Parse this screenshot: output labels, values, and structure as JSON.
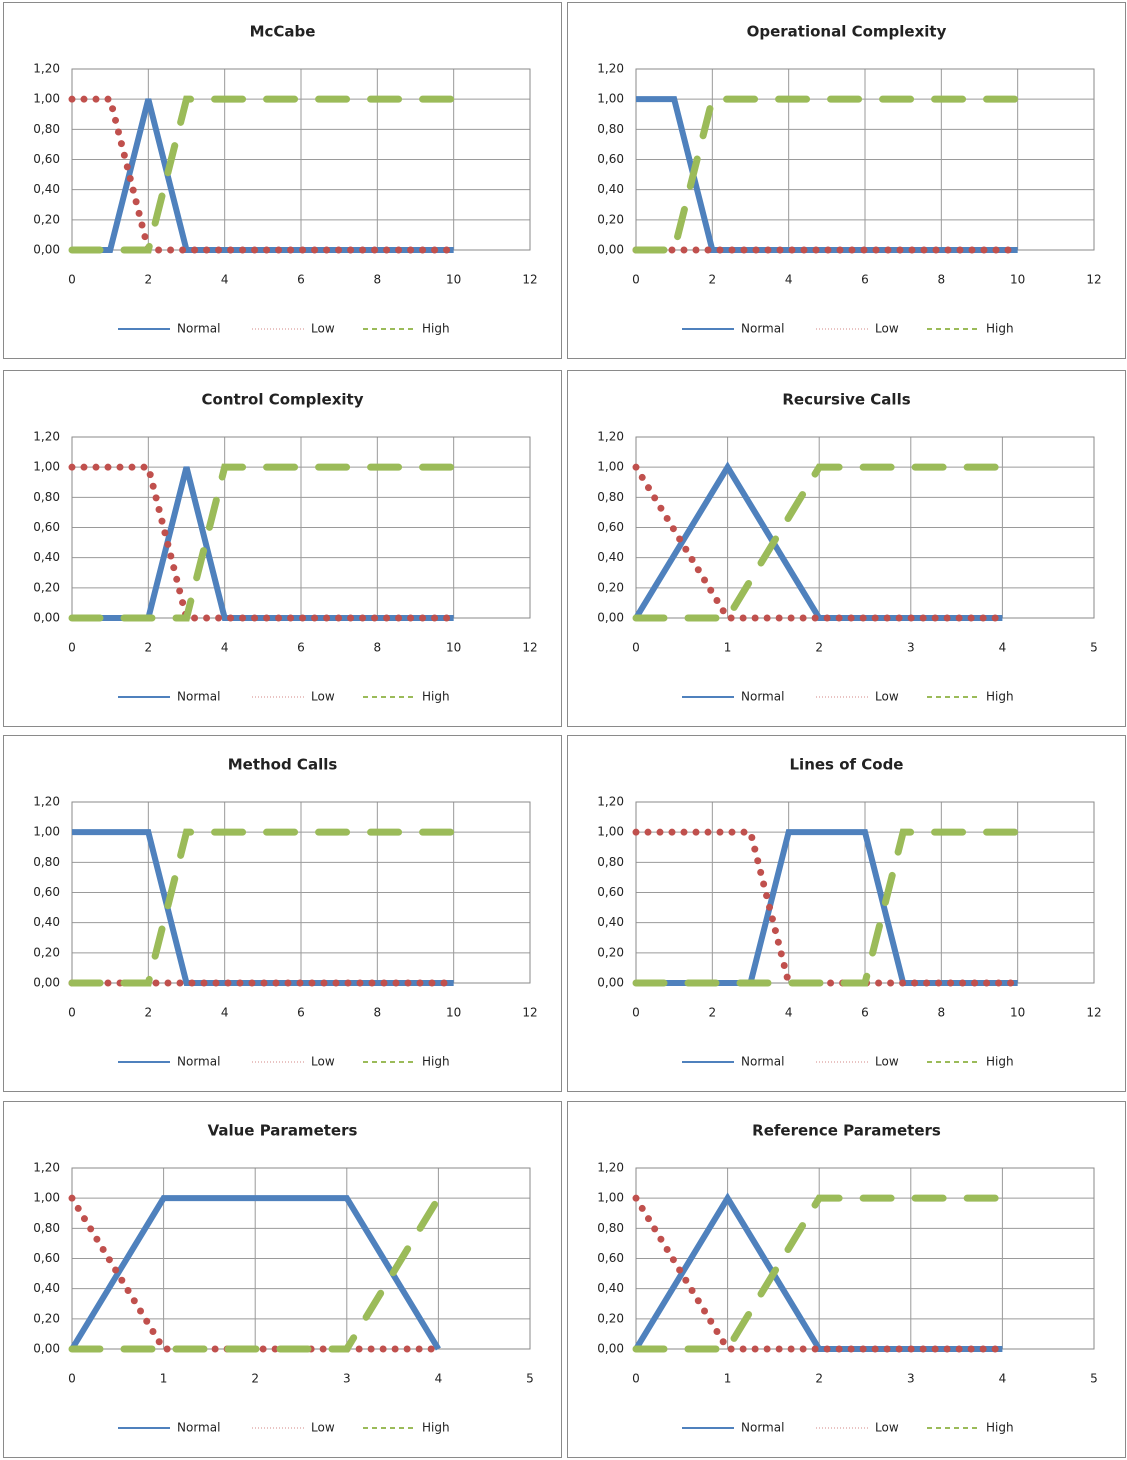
{
  "chart_data": [
    {
      "type": "line",
      "title": "McCabe",
      "x": [
        0,
        1,
        2,
        3,
        4,
        5,
        6,
        7,
        8,
        9,
        10
      ],
      "xlim": [
        0,
        12
      ],
      "xticks": [
        0,
        2,
        4,
        6,
        8,
        10,
        12
      ],
      "ylim": [
        0,
        1.2
      ],
      "yticks": [
        {
          "value": 0,
          "label": "0,00"
        },
        {
          "value": 0.2,
          "label": "0,20"
        },
        {
          "value": 0.4,
          "label": "0,40"
        },
        {
          "value": 0.6,
          "label": "0,60"
        },
        {
          "value": 0.8,
          "label": "0,80"
        },
        {
          "value": 1,
          "label": "1,00"
        },
        {
          "value": 1.2,
          "label": "1,20"
        }
      ],
      "grid": true,
      "series": [
        {
          "name": "Normal",
          "color": "#4f81bd",
          "style": "solid",
          "values": [
            0,
            0,
            1,
            0,
            0,
            0,
            0,
            0,
            0,
            0,
            0
          ]
        },
        {
          "name": "Low",
          "color": "#c0504d",
          "style": "dotted",
          "values": [
            1,
            1,
            0,
            0,
            0,
            0,
            0,
            0,
            0,
            0,
            0
          ]
        },
        {
          "name": "High",
          "color": "#9bbb59",
          "style": "dashed",
          "values": [
            0,
            0,
            0,
            1,
            1,
            1,
            1,
            1,
            1,
            1,
            1
          ]
        }
      ]
    },
    {
      "type": "line",
      "title": "Operational Complexity",
      "x": [
        0,
        1,
        2,
        3,
        4,
        5,
        6,
        7,
        8,
        9,
        10
      ],
      "xlim": [
        0,
        12
      ],
      "xticks": [
        0,
        2,
        4,
        6,
        8,
        10,
        12
      ],
      "ylim": [
        0,
        1.2
      ],
      "yticks": [
        {
          "value": 0,
          "label": "0,00"
        },
        {
          "value": 0.2,
          "label": "0,20"
        },
        {
          "value": 0.4,
          "label": "0,40"
        },
        {
          "value": 0.6,
          "label": "0,60"
        },
        {
          "value": 0.8,
          "label": "0,80"
        },
        {
          "value": 1,
          "label": "1,00"
        },
        {
          "value": 1.2,
          "label": "1,20"
        }
      ],
      "grid": true,
      "series": [
        {
          "name": "Normal",
          "color": "#4f81bd",
          "style": "solid",
          "values": [
            1,
            1,
            0,
            0,
            0,
            0,
            0,
            0,
            0,
            0,
            0
          ]
        },
        {
          "name": "Low",
          "color": "#c0504d",
          "style": "dotted",
          "values": [
            0,
            0,
            0,
            0,
            0,
            0,
            0,
            0,
            0,
            0,
            0
          ]
        },
        {
          "name": "High",
          "color": "#9bbb59",
          "style": "dashed",
          "values": [
            0,
            0,
            1,
            1,
            1,
            1,
            1,
            1,
            1,
            1,
            1
          ]
        }
      ]
    },
    {
      "type": "line",
      "title": "Control Complexity",
      "x": [
        0,
        1,
        2,
        3,
        4,
        5,
        6,
        7,
        8,
        9,
        10
      ],
      "xlim": [
        0,
        12
      ],
      "xticks": [
        0,
        2,
        4,
        6,
        8,
        10,
        12
      ],
      "ylim": [
        0,
        1.2
      ],
      "yticks": [
        {
          "value": 0,
          "label": "0,00"
        },
        {
          "value": 0.2,
          "label": "0,20"
        },
        {
          "value": 0.4,
          "label": "0,40"
        },
        {
          "value": 0.6,
          "label": "0,60"
        },
        {
          "value": 0.8,
          "label": "0,80"
        },
        {
          "value": 1,
          "label": "1,00"
        },
        {
          "value": 1.2,
          "label": "1,20"
        }
      ],
      "grid": true,
      "series": [
        {
          "name": "Normal",
          "color": "#4f81bd",
          "style": "solid",
          "values": [
            0,
            0,
            0,
            1,
            0,
            0,
            0,
            0,
            0,
            0,
            0
          ]
        },
        {
          "name": "Low",
          "color": "#c0504d",
          "style": "dotted",
          "values": [
            1,
            1,
            1,
            0,
            0,
            0,
            0,
            0,
            0,
            0,
            0
          ]
        },
        {
          "name": "High",
          "color": "#9bbb59",
          "style": "dashed",
          "values": [
            0,
            0,
            0,
            0,
            1,
            1,
            1,
            1,
            1,
            1,
            1
          ]
        }
      ]
    },
    {
      "type": "line",
      "title": "Recursive Calls",
      "x": [
        0,
        1,
        2,
        3,
        4
      ],
      "xlim": [
        0,
        5
      ],
      "xticks": [
        0,
        1,
        2,
        3,
        4,
        5
      ],
      "ylim": [
        0,
        1.2
      ],
      "yticks": [
        {
          "value": 0,
          "label": "0,00"
        },
        {
          "value": 0.2,
          "label": "0,20"
        },
        {
          "value": 0.4,
          "label": "0,40"
        },
        {
          "value": 0.6,
          "label": "0,60"
        },
        {
          "value": 0.8,
          "label": "0,80"
        },
        {
          "value": 1,
          "label": "1,00"
        },
        {
          "value": 1.2,
          "label": "1,20"
        }
      ],
      "grid": true,
      "series": [
        {
          "name": "Normal",
          "color": "#4f81bd",
          "style": "solid",
          "values": [
            0,
            1,
            0,
            0,
            0
          ]
        },
        {
          "name": "Low",
          "color": "#c0504d",
          "style": "dotted",
          "values": [
            1,
            0,
            0,
            0,
            0
          ]
        },
        {
          "name": "High",
          "color": "#9bbb59",
          "style": "dashed",
          "values": [
            0,
            0,
            1,
            1,
            1
          ]
        }
      ]
    },
    {
      "type": "line",
      "title": "Method Calls",
      "x": [
        0,
        1,
        2,
        3,
        4,
        5,
        6,
        7,
        8,
        9,
        10
      ],
      "xlim": [
        0,
        12
      ],
      "xticks": [
        0,
        2,
        4,
        6,
        8,
        10,
        12
      ],
      "ylim": [
        0,
        1.2
      ],
      "yticks": [
        {
          "value": 0,
          "label": "0,00"
        },
        {
          "value": 0.2,
          "label": "0,20"
        },
        {
          "value": 0.4,
          "label": "0,40"
        },
        {
          "value": 0.6,
          "label": "0,60"
        },
        {
          "value": 0.8,
          "label": "0,80"
        },
        {
          "value": 1,
          "label": "1,00"
        },
        {
          "value": 1.2,
          "label": "1,20"
        }
      ],
      "grid": true,
      "series": [
        {
          "name": "Normal",
          "color": "#4f81bd",
          "style": "solid",
          "values": [
            1,
            1,
            1,
            0,
            0,
            0,
            0,
            0,
            0,
            0,
            0
          ]
        },
        {
          "name": "Low",
          "color": "#c0504d",
          "style": "dotted",
          "values": [
            0,
            0,
            0,
            0,
            0,
            0,
            0,
            0,
            0,
            0,
            0
          ]
        },
        {
          "name": "High",
          "color": "#9bbb59",
          "style": "dashed",
          "values": [
            0,
            0,
            0,
            1,
            1,
            1,
            1,
            1,
            1,
            1,
            1
          ]
        }
      ]
    },
    {
      "type": "line",
      "title": "Lines of Code",
      "x": [
        0,
        1,
        2,
        3,
        4,
        5,
        6,
        7,
        8,
        9,
        10
      ],
      "xlim": [
        0,
        12
      ],
      "xticks": [
        0,
        2,
        4,
        6,
        8,
        10,
        12
      ],
      "ylim": [
        0,
        1.2
      ],
      "yticks": [
        {
          "value": 0,
          "label": "0,00"
        },
        {
          "value": 0.2,
          "label": "0,20"
        },
        {
          "value": 0.4,
          "label": "0,40"
        },
        {
          "value": 0.6,
          "label": "0,60"
        },
        {
          "value": 0.8,
          "label": "0,80"
        },
        {
          "value": 1,
          "label": "1,00"
        },
        {
          "value": 1.2,
          "label": "1,20"
        }
      ],
      "grid": true,
      "series": [
        {
          "name": "Normal",
          "color": "#4f81bd",
          "style": "solid",
          "values": [
            0,
            0,
            0,
            0,
            1,
            1,
            1,
            0,
            0,
            0,
            0
          ]
        },
        {
          "name": "Low",
          "color": "#c0504d",
          "style": "dotted",
          "values": [
            1,
            1,
            1,
            1,
            0,
            0,
            0,
            0,
            0,
            0,
            0
          ]
        },
        {
          "name": "High",
          "color": "#9bbb59",
          "style": "dashed",
          "values": [
            0,
            0,
            0,
            0,
            0,
            0,
            0,
            1,
            1,
            1,
            1
          ]
        }
      ]
    },
    {
      "type": "line",
      "title": "Value Parameters",
      "x": [
        0,
        1,
        2,
        3,
        4
      ],
      "xlim": [
        0,
        5
      ],
      "xticks": [
        0,
        1,
        2,
        3,
        4,
        5
      ],
      "ylim": [
        0,
        1.2
      ],
      "yticks": [
        {
          "value": 0,
          "label": "0,00"
        },
        {
          "value": 0.2,
          "label": "0,20"
        },
        {
          "value": 0.4,
          "label": "0,40"
        },
        {
          "value": 0.6,
          "label": "0,60"
        },
        {
          "value": 0.8,
          "label": "0,80"
        },
        {
          "value": 1,
          "label": "1,00"
        },
        {
          "value": 1.2,
          "label": "1,20"
        }
      ],
      "grid": true,
      "series": [
        {
          "name": "Normal",
          "color": "#4f81bd",
          "style": "solid",
          "values": [
            0,
            1,
            1,
            1,
            0
          ]
        },
        {
          "name": "Low",
          "color": "#c0504d",
          "style": "dotted",
          "values": [
            1,
            0,
            0,
            0,
            0
          ]
        },
        {
          "name": "High",
          "color": "#9bbb59",
          "style": "dashed",
          "values": [
            0,
            0,
            0,
            0,
            1
          ]
        }
      ]
    },
    {
      "type": "line",
      "title": "Reference Parameters",
      "x": [
        0,
        1,
        2,
        3,
        4
      ],
      "xlim": [
        0,
        5
      ],
      "xticks": [
        0,
        1,
        2,
        3,
        4,
        5
      ],
      "ylim": [
        0,
        1.2
      ],
      "yticks": [
        {
          "value": 0,
          "label": "0,00"
        },
        {
          "value": 0.2,
          "label": "0,20"
        },
        {
          "value": 0.4,
          "label": "0,40"
        },
        {
          "value": 0.6,
          "label": "0,60"
        },
        {
          "value": 0.8,
          "label": "0,80"
        },
        {
          "value": 1,
          "label": "1,00"
        },
        {
          "value": 1.2,
          "label": "1,20"
        }
      ],
      "grid": true,
      "series": [
        {
          "name": "Normal",
          "color": "#4f81bd",
          "style": "solid",
          "values": [
            0,
            1,
            0,
            0,
            0
          ]
        },
        {
          "name": "Low",
          "color": "#c0504d",
          "style": "dotted",
          "values": [
            1,
            0,
            0,
            0,
            0
          ]
        },
        {
          "name": "High",
          "color": "#9bbb59",
          "style": "dashed",
          "values": [
            0,
            0,
            1,
            1,
            1
          ]
        }
      ]
    }
  ]
}
